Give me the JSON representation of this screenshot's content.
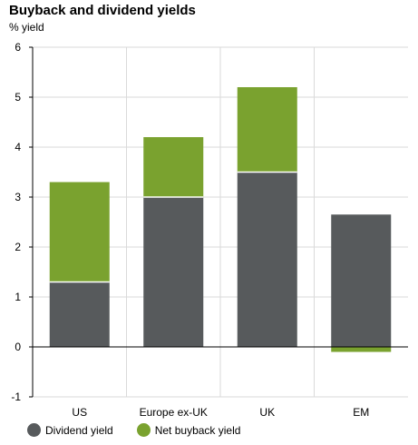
{
  "chart_data": {
    "type": "bar",
    "stacked": true,
    "title": "Buyback and dividend yields",
    "ylabel": "% yield",
    "xlabel": "",
    "categories": [
      "US",
      "Europe ex-UK",
      "UK",
      "EM"
    ],
    "series": [
      {
        "name": "Dividend yield",
        "values": [
          1.3,
          3.0,
          3.5,
          2.65
        ],
        "color": "#575a5c"
      },
      {
        "name": "Net buyback yield",
        "values": [
          2.0,
          1.2,
          1.7,
          -0.1
        ],
        "color": "#7aa22f"
      }
    ],
    "ylim": [
      -1,
      6
    ],
    "yticks": [
      "-1",
      "0",
      "1",
      "2",
      "3",
      "4",
      "5",
      "6"
    ],
    "grid": true,
    "legend": "bottom-left"
  }
}
